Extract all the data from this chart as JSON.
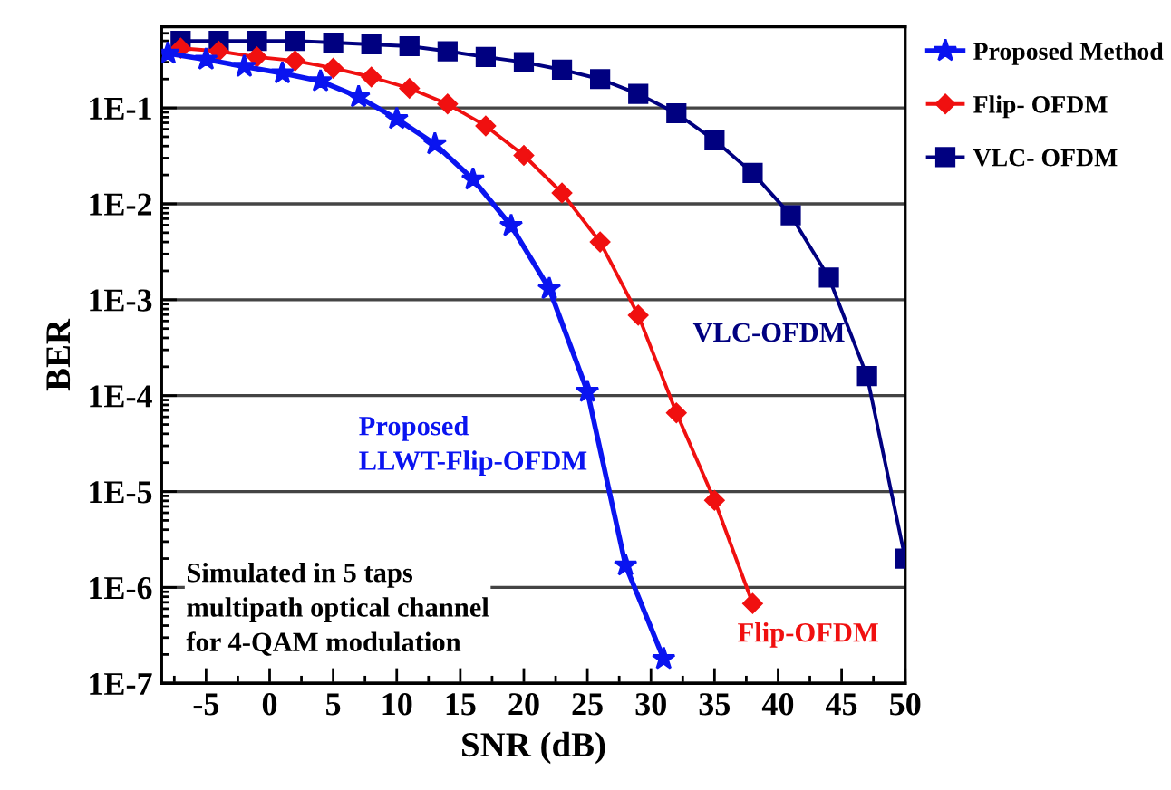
{
  "chart_data": {
    "type": "line",
    "xlabel": "SNR (dB)",
    "ylabel": "BER",
    "log": "y",
    "grid": "y",
    "legend": "right",
    "xlim": [
      -8.5,
      50
    ],
    "xticks": [
      -5,
      0,
      5,
      10,
      15,
      20,
      25,
      30,
      35,
      40,
      45,
      50
    ],
    "ylim": [
      1e-07,
      0.7
    ],
    "yticks": [
      {
        "value": 1e-07,
        "label": "1E-7"
      },
      {
        "value": 1e-06,
        "label": "1E-6"
      },
      {
        "value": 1e-05,
        "label": "1E-5"
      },
      {
        "value": 0.0001,
        "label": "1E-4"
      },
      {
        "value": 0.001,
        "label": "1E-3"
      },
      {
        "value": 0.01,
        "label": "1E-2"
      },
      {
        "value": 0.1,
        "label": "1E-1"
      }
    ],
    "series": [
      {
        "name": "Proposed Method",
        "color": "#0a14f0",
        "marker": "star",
        "x": [
          -8,
          -5,
          -2,
          1,
          4,
          7,
          10,
          13,
          16,
          19,
          22,
          25,
          28,
          31
        ],
        "values": [
          0.37,
          0.32,
          0.27,
          0.23,
          0.19,
          0.13,
          0.077,
          0.042,
          0.018,
          0.0059,
          0.0013,
          0.00011,
          1.7e-06,
          1.8e-07
        ]
      },
      {
        "name": "Flip- OFDM",
        "color": "#f01010",
        "marker": "diamond",
        "x": [
          -7,
          -4,
          -1,
          2,
          5,
          8,
          11,
          14,
          17,
          20,
          23,
          26,
          29,
          32,
          35,
          38
        ],
        "values": [
          0.42,
          0.39,
          0.34,
          0.31,
          0.26,
          0.21,
          0.16,
          0.11,
          0.065,
          0.032,
          0.013,
          0.004,
          0.00069,
          6.6e-05,
          8.1e-06,
          6.8e-07
        ]
      },
      {
        "name": "VLC- OFDM",
        "color": "#000080",
        "marker": "square",
        "x": [
          -7,
          -4,
          -1,
          2,
          5,
          8,
          11,
          14,
          17,
          20,
          23,
          26,
          29,
          32,
          35,
          38,
          41,
          44,
          47,
          50
        ],
        "values": [
          0.5,
          0.5,
          0.5,
          0.5,
          0.48,
          0.46,
          0.44,
          0.39,
          0.34,
          0.3,
          0.25,
          0.2,
          0.14,
          0.088,
          0.046,
          0.021,
          0.0076,
          0.0017,
          0.00016,
          2e-06
        ]
      }
    ],
    "annotations": [
      "Proposed\nLLWT-Flip-OFDM",
      "Flip-OFDM",
      "VLC-OFDM",
      "Simulated in 5 taps\nmultipath optical channel\nfor 4-QAM modulation"
    ]
  }
}
